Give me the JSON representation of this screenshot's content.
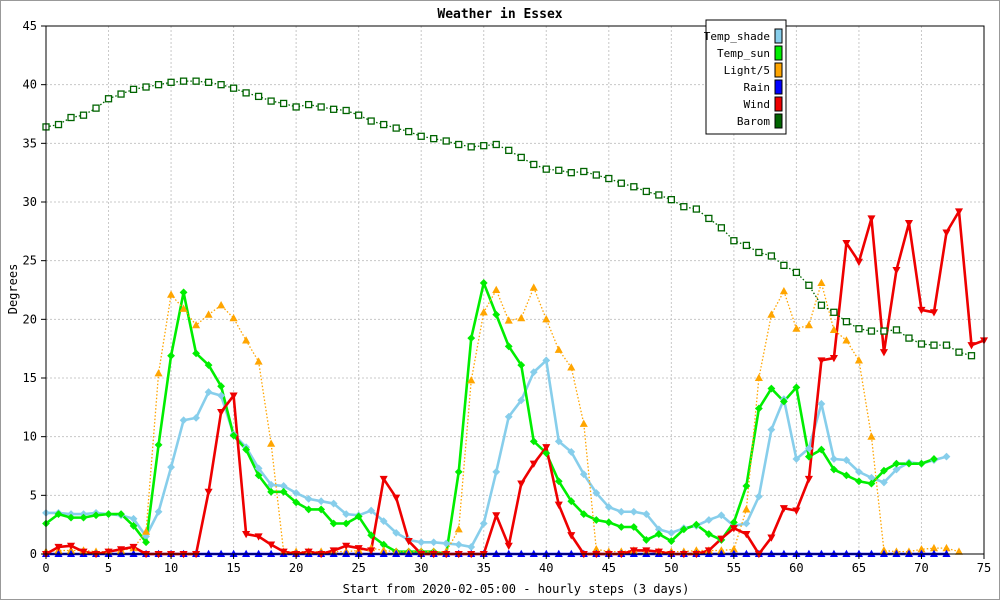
{
  "chart_data": {
    "type": "line",
    "title": "Weather in Essex",
    "xlabel": "Start from 2020-02-05:00 - hourly steps (3 days)",
    "ylabel": "Degrees",
    "xlim": [
      0,
      75
    ],
    "ylim": [
      0,
      45
    ],
    "x_ticks": [
      0,
      5,
      10,
      15,
      20,
      25,
      30,
      35,
      40,
      45,
      50,
      55,
      60,
      65,
      70,
      75
    ],
    "y_ticks": [
      0,
      5,
      10,
      15,
      20,
      25,
      30,
      35,
      40,
      45
    ],
    "grid": true,
    "legend_position": "top-right",
    "series": [
      {
        "name": "Temp_shade",
        "color": "#87CEEB",
        "line_style": "solid",
        "marker": "diamond",
        "values": [
          3.5,
          3.5,
          3.4,
          3.4,
          3.5,
          3.4,
          3.3,
          3.0,
          1.5,
          3.6,
          7.4,
          11.4,
          11.6,
          13.8,
          13.5,
          10.2,
          9.1,
          7.3,
          5.9,
          5.8,
          5.2,
          4.7,
          4.5,
          4.3,
          3.4,
          3.3,
          3.7,
          2.8,
          1.8,
          1.2,
          1.0,
          1.0,
          0.9,
          0.8,
          0.6,
          2.6,
          7.0,
          11.7,
          13.1,
          15.5,
          16.5,
          9.6,
          8.7,
          6.8,
          5.2,
          4.0,
          3.6,
          3.6,
          3.4,
          2.1,
          1.8,
          2.2,
          2.4,
          2.9,
          3.3,
          2.4,
          2.6,
          4.9,
          10.6,
          13.2,
          8.1,
          9.0,
          12.8,
          8.1,
          8.0,
          7.0,
          6.5,
          6.1,
          7.2,
          7.8,
          7.7,
          8.0,
          8.3
        ]
      },
      {
        "name": "Temp_sun",
        "color": "#00EE00",
        "line_style": "solid",
        "marker": "diamond",
        "values": [
          2.6,
          3.4,
          3.1,
          3.1,
          3.3,
          3.4,
          3.4,
          2.4,
          1.0,
          9.3,
          16.9,
          22.3,
          17.1,
          16.1,
          14.3,
          10.1,
          8.9,
          6.7,
          5.3,
          5.3,
          4.4,
          3.8,
          3.8,
          2.6,
          2.6,
          3.2,
          1.6,
          0.8,
          0.2,
          0.2,
          0.2,
          0.2,
          0.0,
          7.0,
          18.4,
          23.1,
          20.4,
          17.7,
          16.1,
          9.6,
          8.6,
          6.2,
          4.5,
          3.4,
          2.9,
          2.7,
          2.3,
          2.3,
          1.2,
          1.7,
          1.1,
          2.1,
          2.5,
          1.7,
          1.2,
          2.7,
          5.8,
          12.4,
          14.1,
          13.0,
          14.2,
          8.3,
          8.9,
          7.2,
          6.7,
          6.2,
          6.0,
          7.1,
          7.7,
          7.7,
          7.7,
          8.1
        ]
      },
      {
        "name": "Light/5",
        "color": "#FFA500",
        "line_style": "dotted",
        "marker": "triangle-up",
        "values": [
          0.2,
          0.3,
          0.3,
          0.3,
          0.2,
          0.2,
          0.3,
          0.5,
          1.9,
          15.4,
          22.1,
          20.9,
          19.5,
          20.4,
          21.2,
          20.1,
          18.2,
          16.4,
          9.4,
          0.2,
          0.2,
          0.2,
          0.2,
          0.2,
          0.2,
          0.3,
          0.5,
          0.3,
          0.2,
          0.2,
          0.2,
          0.2,
          0.2,
          2.1,
          14.8,
          20.6,
          22.5,
          19.9,
          20.1,
          22.7,
          20.0,
          17.4,
          15.9,
          11.1,
          0.4,
          0.2,
          0.2,
          0.3,
          0.2,
          0.2,
          0.2,
          0.2,
          0.3,
          0.3,
          0.3,
          0.4,
          3.8,
          15.0,
          20.4,
          22.4,
          19.2,
          19.5,
          23.1,
          19.1,
          18.2,
          16.5,
          10.0,
          0.3,
          0.2,
          0.2,
          0.4,
          0.5,
          0.5,
          0.2
        ]
      },
      {
        "name": "Rain",
        "color": "#0000FF",
        "line_style": "solid",
        "marker": "triangle-up",
        "values": [
          0.0,
          0.0,
          0.0,
          0.0,
          0.0,
          0.0,
          0.0,
          0.0,
          0.0,
          0.0,
          0.0,
          0.0,
          0.0,
          0.0,
          0.0,
          0.0,
          0.0,
          0.0,
          0.0,
          0.0,
          0.0,
          0.0,
          0.0,
          0.0,
          0.0,
          0.0,
          0.0,
          0.0,
          0.0,
          0.0,
          0.0,
          0.0,
          0.0,
          0.0,
          0.0,
          0.0,
          0.0,
          0.0,
          0.0,
          0.0,
          0.0,
          0.0,
          0.0,
          0.0,
          0.0,
          0.0,
          0.0,
          0.0,
          0.0,
          0.0,
          0.0,
          0.0,
          0.0,
          0.0,
          0.0,
          0.0,
          0.0,
          0.0,
          0.0,
          0.0,
          0.0,
          0.0,
          0.0,
          0.0,
          0.0,
          0.0,
          0.0,
          0.0,
          0.0,
          0.0,
          0.0,
          0.0,
          0.0
        ]
      },
      {
        "name": "Wind",
        "color": "#EE0000",
        "line_style": "solid",
        "marker": "triangle-down",
        "values": [
          0.0,
          0.6,
          0.7,
          0.2,
          0.0,
          0.2,
          0.4,
          0.6,
          0.0,
          0.0,
          0.0,
          0.0,
          0.0,
          5.3,
          12.1,
          13.5,
          1.7,
          1.5,
          0.8,
          0.2,
          0.0,
          0.2,
          0.0,
          0.3,
          0.7,
          0.5,
          0.3,
          6.4,
          4.8,
          1.1,
          0.0,
          0.0,
          0.0,
          0.0,
          0.0,
          0.0,
          3.3,
          0.7,
          6.0,
          7.7,
          9.1,
          4.2,
          1.6,
          0.0,
          0.0,
          0.0,
          0.0,
          0.3,
          0.3,
          0.2,
          0.0,
          0.0,
          0.0,
          0.3,
          1.3,
          2.2,
          1.7,
          0.0,
          1.4,
          3.9,
          3.7,
          6.4,
          16.5,
          16.7,
          26.5,
          24.9,
          28.6,
          17.2,
          24.2,
          28.2,
          20.8,
          20.6,
          27.4,
          29.2,
          17.8,
          18.2
        ]
      },
      {
        "name": "Barom",
        "color": "#006400",
        "line_style": "dotted",
        "marker": "square",
        "values": [
          36.4,
          36.6,
          37.2,
          37.4,
          38.0,
          38.8,
          39.2,
          39.6,
          39.8,
          40.0,
          40.2,
          40.3,
          40.3,
          40.2,
          40.0,
          39.7,
          39.3,
          39.0,
          38.6,
          38.4,
          38.1,
          38.3,
          38.1,
          37.9,
          37.8,
          37.4,
          36.9,
          36.6,
          36.3,
          36.0,
          35.6,
          35.4,
          35.2,
          34.9,
          34.7,
          34.8,
          34.9,
          34.4,
          33.8,
          33.2,
          32.8,
          32.7,
          32.5,
          32.6,
          32.3,
          32.0,
          31.6,
          31.3,
          30.9,
          30.6,
          30.2,
          29.6,
          29.4,
          28.6,
          27.8,
          26.7,
          26.3,
          25.7,
          25.4,
          24.6,
          24.0,
          22.9,
          21.2,
          20.6,
          19.8,
          19.2,
          19.0,
          19.0,
          19.1,
          18.4,
          17.9,
          17.8,
          17.8,
          17.2,
          16.9
        ]
      }
    ]
  }
}
